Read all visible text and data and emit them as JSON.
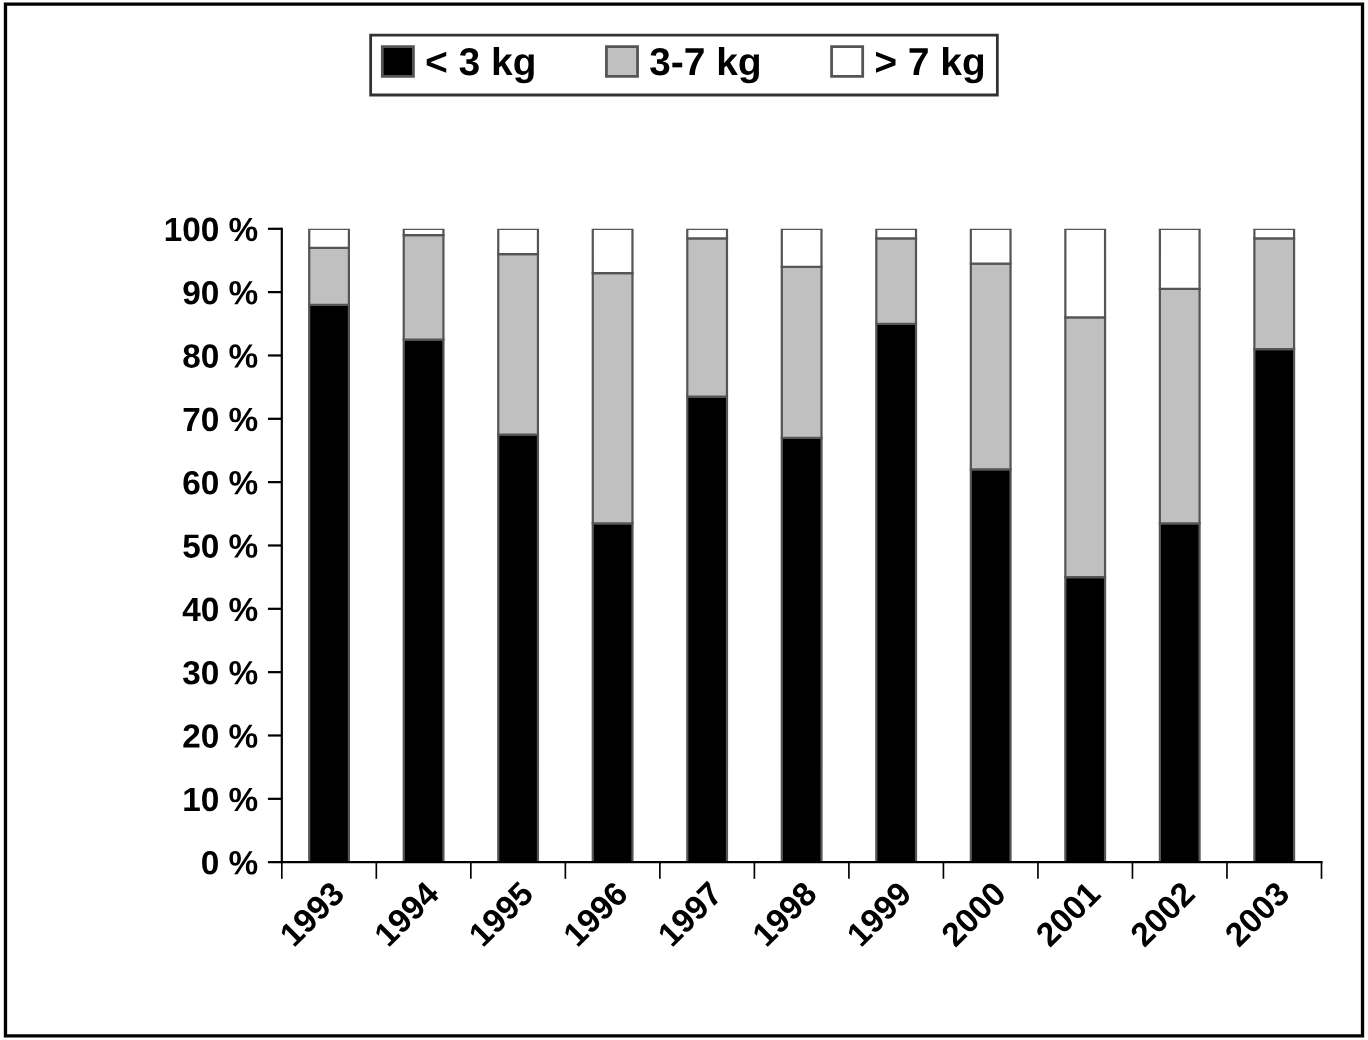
{
  "chart_data": {
    "type": "bar",
    "stacked": true,
    "categories": [
      "1993",
      "1994",
      "1995",
      "1996",
      "1997",
      "1998",
      "1999",
      "2000",
      "2001",
      "2002",
      "2003"
    ],
    "series": [
      {
        "name": "< 3 kg",
        "color": "#000000",
        "values": [
          88,
          82.5,
          67.5,
          53.5,
          73.5,
          67,
          85,
          62,
          45,
          53.5,
          81
        ]
      },
      {
        "name": "3-7 kg",
        "color": "#c0c0c0",
        "values": [
          9,
          16.5,
          28.5,
          39.5,
          25,
          27,
          13.5,
          32.5,
          41,
          37,
          17.5
        ]
      },
      {
        "name": "> 7 kg",
        "color": "#ffffff",
        "values": [
          3,
          1,
          4,
          7,
          1.5,
          6,
          1.5,
          5.5,
          14,
          9.5,
          1.5
        ]
      }
    ],
    "ylim": [
      0,
      100
    ],
    "yticks": [
      {
        "value": 0,
        "label": "0 %"
      },
      {
        "value": 10,
        "label": "10 %"
      },
      {
        "value": 20,
        "label": "20 %"
      },
      {
        "value": 30,
        "label": "30 %"
      },
      {
        "value": 40,
        "label": "40 %"
      },
      {
        "value": 50,
        "label": "50 %"
      },
      {
        "value": 60,
        "label": "60 %"
      },
      {
        "value": 70,
        "label": "70 %"
      },
      {
        "value": 80,
        "label": "80 %"
      },
      {
        "value": 90,
        "label": "90 %"
      },
      {
        "value": 100,
        "label": "100 %"
      }
    ],
    "legend": "top",
    "grid": false
  }
}
